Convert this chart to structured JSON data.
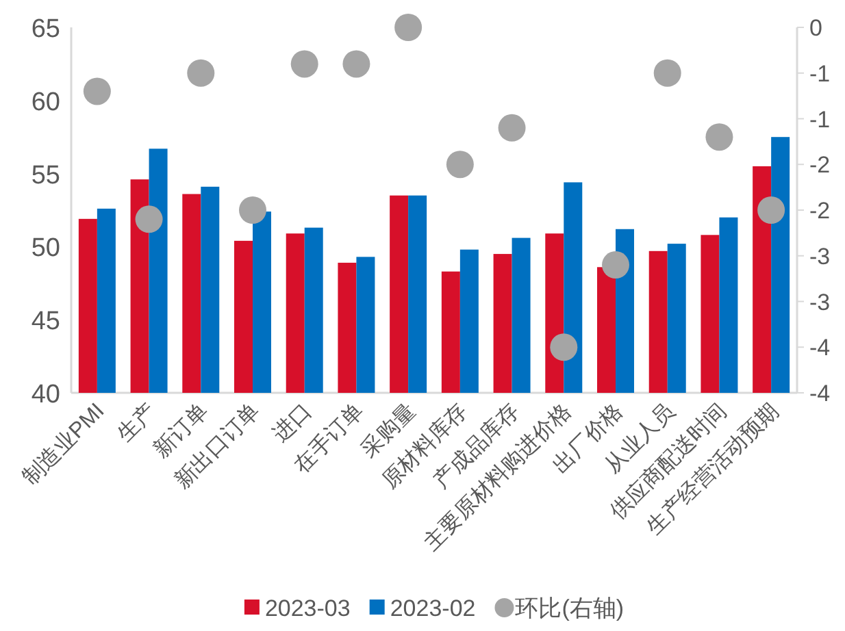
{
  "chart_data": {
    "type": "bar",
    "categories": [
      "制造业PMI",
      "生产",
      "新订单",
      "新出口订单",
      "进口",
      "在手订单",
      "采购量",
      "原材料库存",
      "产成品库存",
      "主要原材料购进价格",
      "出厂价格",
      "从业人员",
      "供应商配送时间",
      "生产经营活动预期"
    ],
    "series": [
      {
        "name": "2023-03",
        "color": "#d7102a",
        "values": [
          51.9,
          54.6,
          53.6,
          50.4,
          50.9,
          48.9,
          53.5,
          48.3,
          49.5,
          50.9,
          48.6,
          49.7,
          50.8,
          55.5
        ]
      },
      {
        "name": "2023-02",
        "color": "#0070c0",
        "values": [
          52.6,
          56.7,
          54.1,
          52.4,
          51.3,
          49.3,
          53.5,
          49.8,
          50.6,
          54.4,
          51.2,
          50.2,
          52.0,
          57.5
        ]
      },
      {
        "name": "环比(右轴)",
        "type": "scatter",
        "axis": "y2",
        "marker": "circle",
        "color": "#a5a5a5",
        "values": [
          -0.7,
          -2.1,
          -0.5,
          -2.0,
          -0.4,
          -0.4,
          0.0,
          -1.5,
          -1.1,
          -3.5,
          -2.6,
          -0.5,
          -1.2,
          -2.0
        ]
      }
    ],
    "ylim": [
      40,
      65
    ],
    "yticks": [
      40,
      45,
      50,
      55,
      60,
      65
    ],
    "y2lim": [
      -4,
      0
    ],
    "y2ticks": [
      {
        "value": 0,
        "label": "0"
      },
      {
        "value": -0.5,
        "label": "-1"
      },
      {
        "value": -1,
        "label": "-1"
      },
      {
        "value": -1.5,
        "label": "-2"
      },
      {
        "value": -2,
        "label": "-2"
      },
      {
        "value": -2.5,
        "label": "-3"
      },
      {
        "value": -3,
        "label": "-3"
      },
      {
        "value": -3.5,
        "label": "-4"
      },
      {
        "value": -4,
        "label": "-4"
      }
    ],
    "grid": false,
    "legend": "bottom"
  }
}
